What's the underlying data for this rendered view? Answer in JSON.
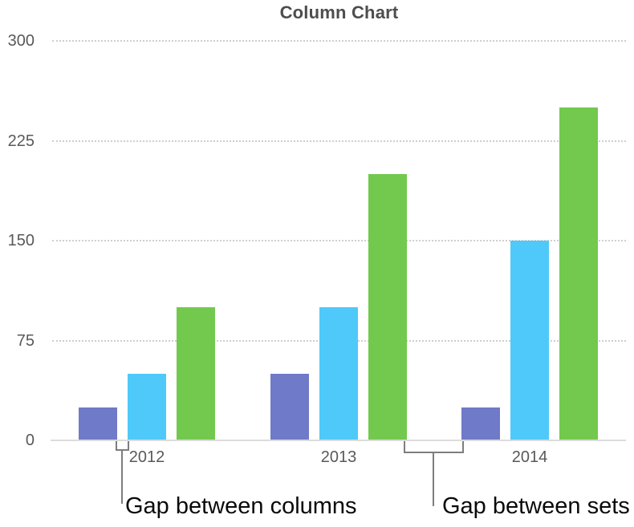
{
  "title": "Column Chart",
  "annotations": {
    "gap_between_columns": "Gap between columns",
    "gap_between_sets": "Gap between sets"
  },
  "chart_data": {
    "type": "bar",
    "title": "Column Chart",
    "categories": [
      "2012",
      "2013",
      "2014"
    ],
    "series": [
      {
        "name": "purple",
        "color": "#6F7AC9",
        "values": [
          25,
          50,
          25
        ]
      },
      {
        "name": "blue",
        "color": "#4FC9F9",
        "values": [
          50,
          100,
          150
        ]
      },
      {
        "name": "green",
        "color": "#72C94E",
        "values": [
          100,
          200,
          250
        ]
      }
    ],
    "xlabel": "",
    "ylabel": "",
    "y_ticks": [
      0,
      75,
      150,
      225,
      300
    ],
    "ylim": [
      0,
      300
    ],
    "grid": "horizontal dotted",
    "legend": "none"
  }
}
